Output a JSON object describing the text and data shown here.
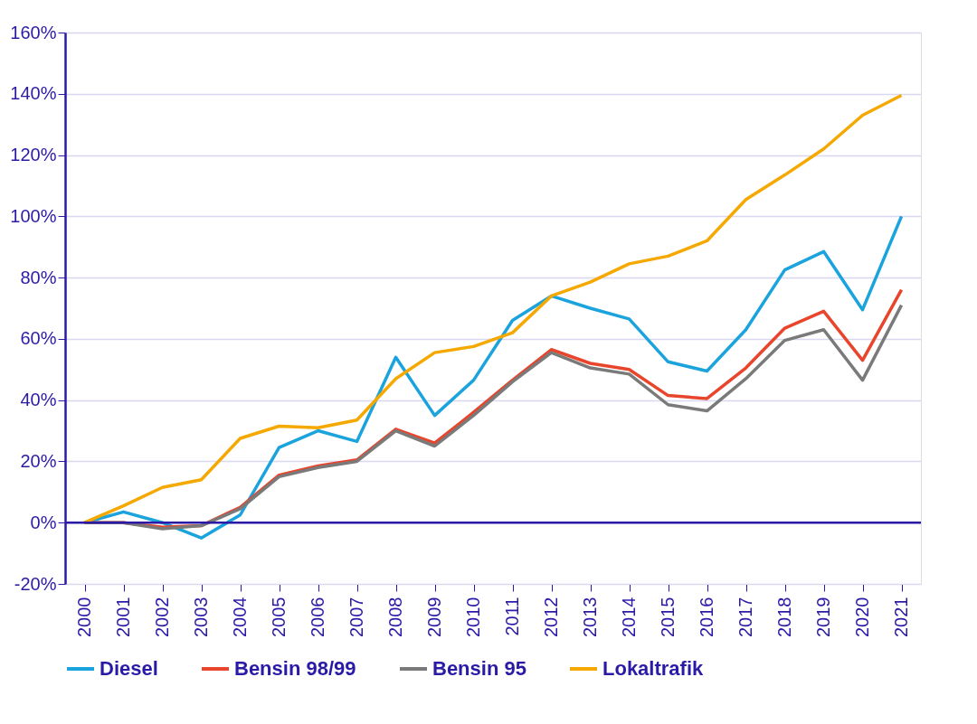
{
  "chart_data": {
    "type": "line",
    "categories": [
      "2000",
      "2001",
      "2002",
      "2003",
      "2004",
      "2005",
      "2006",
      "2007",
      "2008",
      "2009",
      "2010",
      "2011",
      "2012",
      "2013",
      "2014",
      "2015",
      "2016",
      "2017",
      "2018",
      "2019",
      "2020",
      "2021"
    ],
    "series": [
      {
        "name": "Diesel",
        "color": "#1aa3dc",
        "values": [
          0,
          3.5,
          0,
          -5,
          2.5,
          24.5,
          30,
          26.5,
          54,
          35,
          46.5,
          66,
          74,
          70,
          66.5,
          52.5,
          49.5,
          63,
          82.5,
          88.5,
          69.5,
          100
        ]
      },
      {
        "name": "Bensin 98/99",
        "color": "#e8452c",
        "values": [
          0,
          0,
          -1.5,
          -1,
          5,
          15.5,
          18.5,
          20.5,
          30.5,
          26,
          36,
          46.5,
          56.5,
          52,
          50,
          41.5,
          40.5,
          50.5,
          63.5,
          69,
          53,
          76
        ]
      },
      {
        "name": "Bensin 95",
        "color": "#7a7a7a",
        "values": [
          0,
          0,
          -2,
          -1,
          4.5,
          15,
          18,
          20,
          30,
          25,
          35,
          46,
          55.5,
          50.5,
          48.5,
          38.5,
          36.5,
          47,
          59.5,
          63,
          46.5,
          71
        ]
      },
      {
        "name": "Lokaltrafik",
        "color": "#f5a800",
        "values": [
          0,
          5.5,
          11.5,
          14,
          27.5,
          31.5,
          31,
          33.5,
          47,
          55.5,
          57.5,
          62,
          74,
          78.5,
          84.5,
          87,
          92,
          105.5,
          113.5,
          122,
          133,
          139.5
        ]
      }
    ],
    "ylim": [
      -20,
      160
    ],
    "yticks": [
      {
        "value": -20,
        "label": "-20%"
      },
      {
        "value": 0,
        "label": "0%"
      },
      {
        "value": 20,
        "label": "20%"
      },
      {
        "value": 40,
        "label": "40%"
      },
      {
        "value": 60,
        "label": "60%"
      },
      {
        "value": 80,
        "label": "80%"
      },
      {
        "value": 100,
        "label": "100%"
      },
      {
        "value": 120,
        "label": "120%"
      },
      {
        "value": 140,
        "label": "140%"
      },
      {
        "value": 160,
        "label": "160%"
      }
    ],
    "ref_lines": [
      {
        "axis": "y",
        "value": 0,
        "color": "#2a1aa6"
      }
    ],
    "grid": "y",
    "legend": "bottom",
    "marker": "none",
    "line_style": "solid"
  }
}
